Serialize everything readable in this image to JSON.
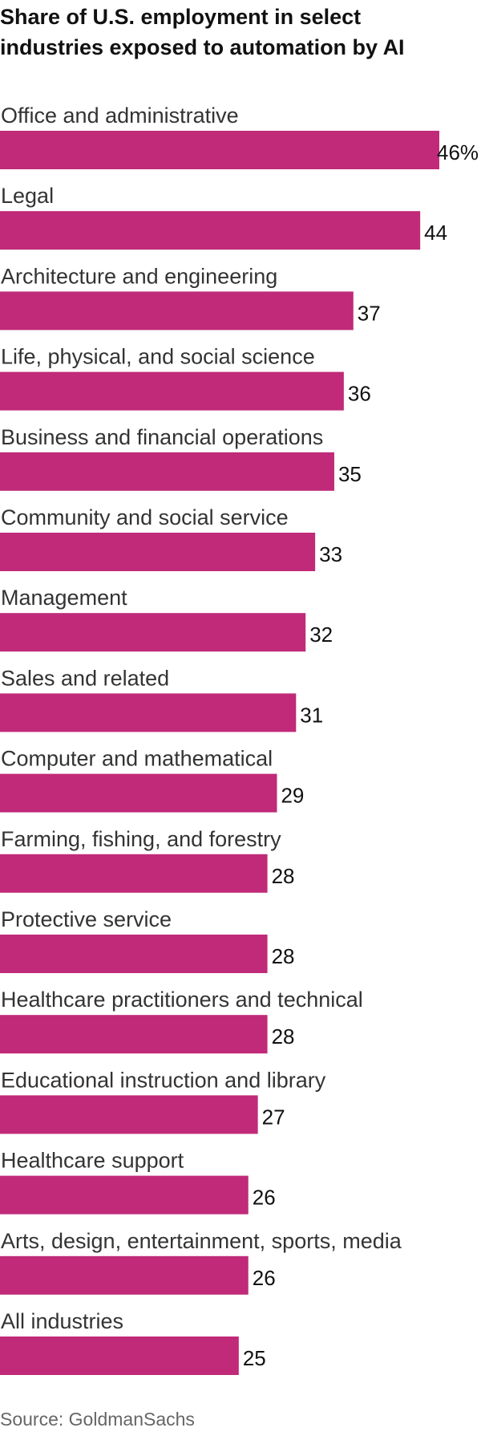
{
  "chart_data": {
    "type": "bar",
    "orientation": "horizontal",
    "title": "Share of U.S. employment in select industries exposed to automation by AI",
    "categories": [
      "Office and administrative",
      "Legal",
      "Architecture and engineering",
      "Life, physical, and social science",
      "Business and financial operations",
      "Community and social service",
      "Management",
      "Sales and related",
      "Computer and mathematical",
      "Farming, fishing, and forestry",
      "Protective service",
      "Healthcare practitioners and technical",
      "Educational instruction and library",
      "Healthcare support",
      "Arts, design, entertainment, sports, media",
      "All industries"
    ],
    "values": [
      46,
      44,
      37,
      36,
      35,
      33,
      32,
      31,
      29,
      28,
      28,
      28,
      27,
      26,
      26,
      25
    ],
    "value_labels": [
      "46%",
      "44",
      "37",
      "36",
      "35",
      "33",
      "32",
      "31",
      "29",
      "28",
      "28",
      "28",
      "27",
      "26",
      "26",
      "25"
    ],
    "unit": "%",
    "xlim": [
      0,
      46
    ],
    "bar_color": "#c02a78",
    "source": "Source: GoldmanSachs"
  }
}
